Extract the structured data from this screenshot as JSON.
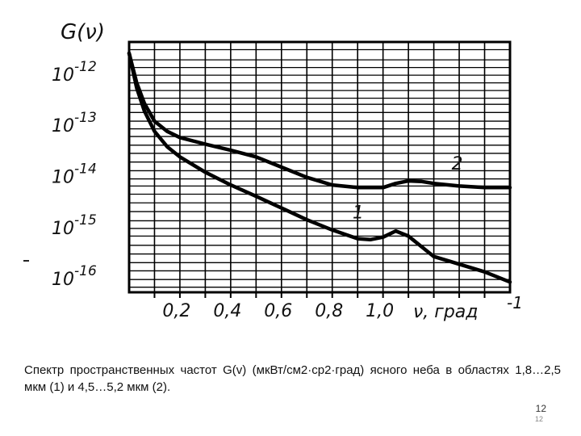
{
  "chart_data": {
    "type": "line",
    "ylabel": "G(ν)",
    "xlabel": "ν, град",
    "xlabel_unit_exp": "-1",
    "y_scale": "log",
    "x_ticks": [
      "0,2",
      "0,4",
      "0,6",
      "0,8",
      "1,0"
    ],
    "x_tick_values": [
      0.2,
      0.4,
      0.6,
      0.8,
      1.0
    ],
    "y_ticks": [
      {
        "base": "10",
        "exp": "-12",
        "value": 1e-12
      },
      {
        "base": "10",
        "exp": "-13",
        "value": 1e-13
      },
      {
        "base": "10",
        "exp": "-14",
        "value": 1e-14
      },
      {
        "base": "10",
        "exp": "-15",
        "value": 1e-15
      },
      {
        "base": "10",
        "exp": "-16",
        "value": 1e-16
      }
    ],
    "xlim": [
      0.0,
      1.5
    ],
    "ylim_log10": [
      -16.3,
      -11.4
    ],
    "grid": true,
    "series": [
      {
        "name": "1",
        "x": [
          0.0,
          0.03,
          0.06,
          0.1,
          0.15,
          0.2,
          0.3,
          0.4,
          0.5,
          0.6,
          0.7,
          0.8,
          0.9,
          0.95,
          1.0,
          1.05,
          1.1,
          1.15,
          1.2,
          1.3,
          1.4,
          1.5
        ],
        "log10_y": [
          -11.62,
          -12.3,
          -12.75,
          -13.15,
          -13.45,
          -13.65,
          -13.95,
          -14.2,
          -14.42,
          -14.65,
          -14.88,
          -15.08,
          -15.25,
          -15.27,
          -15.22,
          -15.1,
          -15.2,
          -15.4,
          -15.6,
          -15.75,
          -15.9,
          -16.1
        ]
      },
      {
        "name": "2",
        "x": [
          0.0,
          0.03,
          0.06,
          0.1,
          0.15,
          0.2,
          0.3,
          0.4,
          0.5,
          0.6,
          0.7,
          0.8,
          0.9,
          1.0,
          1.05,
          1.1,
          1.15,
          1.2,
          1.3,
          1.4,
          1.5
        ],
        "log10_y": [
          -11.62,
          -12.2,
          -12.6,
          -12.95,
          -13.15,
          -13.27,
          -13.4,
          -13.52,
          -13.65,
          -13.85,
          -14.05,
          -14.2,
          -14.25,
          -14.25,
          -14.17,
          -14.12,
          -14.13,
          -14.17,
          -14.22,
          -14.25,
          -14.25
        ]
      }
    ]
  },
  "caption": {
    "text": "Спектр пространственных частот G(v) (мкВт/см2·ср2·град) ясного неба в областях 1,8…2,5 мкм (1) и 4,5…5,2 мкм (2)."
  },
  "page": {
    "number": "12",
    "number_small": "12"
  }
}
